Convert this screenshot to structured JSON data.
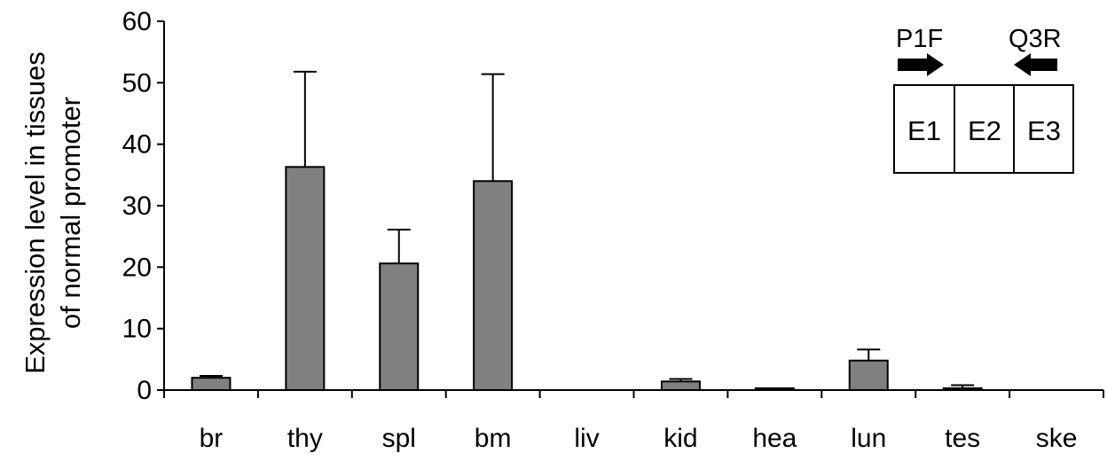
{
  "chart_data": {
    "type": "bar",
    "title": "",
    "xlabel": "",
    "ylabel_lines": [
      "Expression level in tissues",
      "of normal promoter"
    ],
    "categories": [
      "br",
      "thy",
      "spl",
      "bm",
      "liv",
      "kid",
      "hea",
      "lun",
      "tes",
      "ske"
    ],
    "series": [
      {
        "values": [
          2.0,
          36.3,
          20.6,
          34.0,
          0.0,
          1.4,
          0.3,
          4.8,
          0.3,
          0.0
        ],
        "error_plus": [
          0.3,
          15.5,
          5.5,
          17.4,
          0.0,
          0.4,
          0.0,
          1.8,
          0.5,
          0.0
        ]
      }
    ],
    "ylim": [
      0,
      60
    ],
    "yticks": [
      0,
      10,
      20,
      30,
      40,
      50,
      60
    ],
    "grid": false,
    "bar_color": "#808080",
    "bar_edge_color": "#000000"
  },
  "inset": {
    "primer_forward": "P1F",
    "primer_reverse": "Q3R",
    "exons": [
      "E1",
      "E2",
      "E3"
    ]
  }
}
